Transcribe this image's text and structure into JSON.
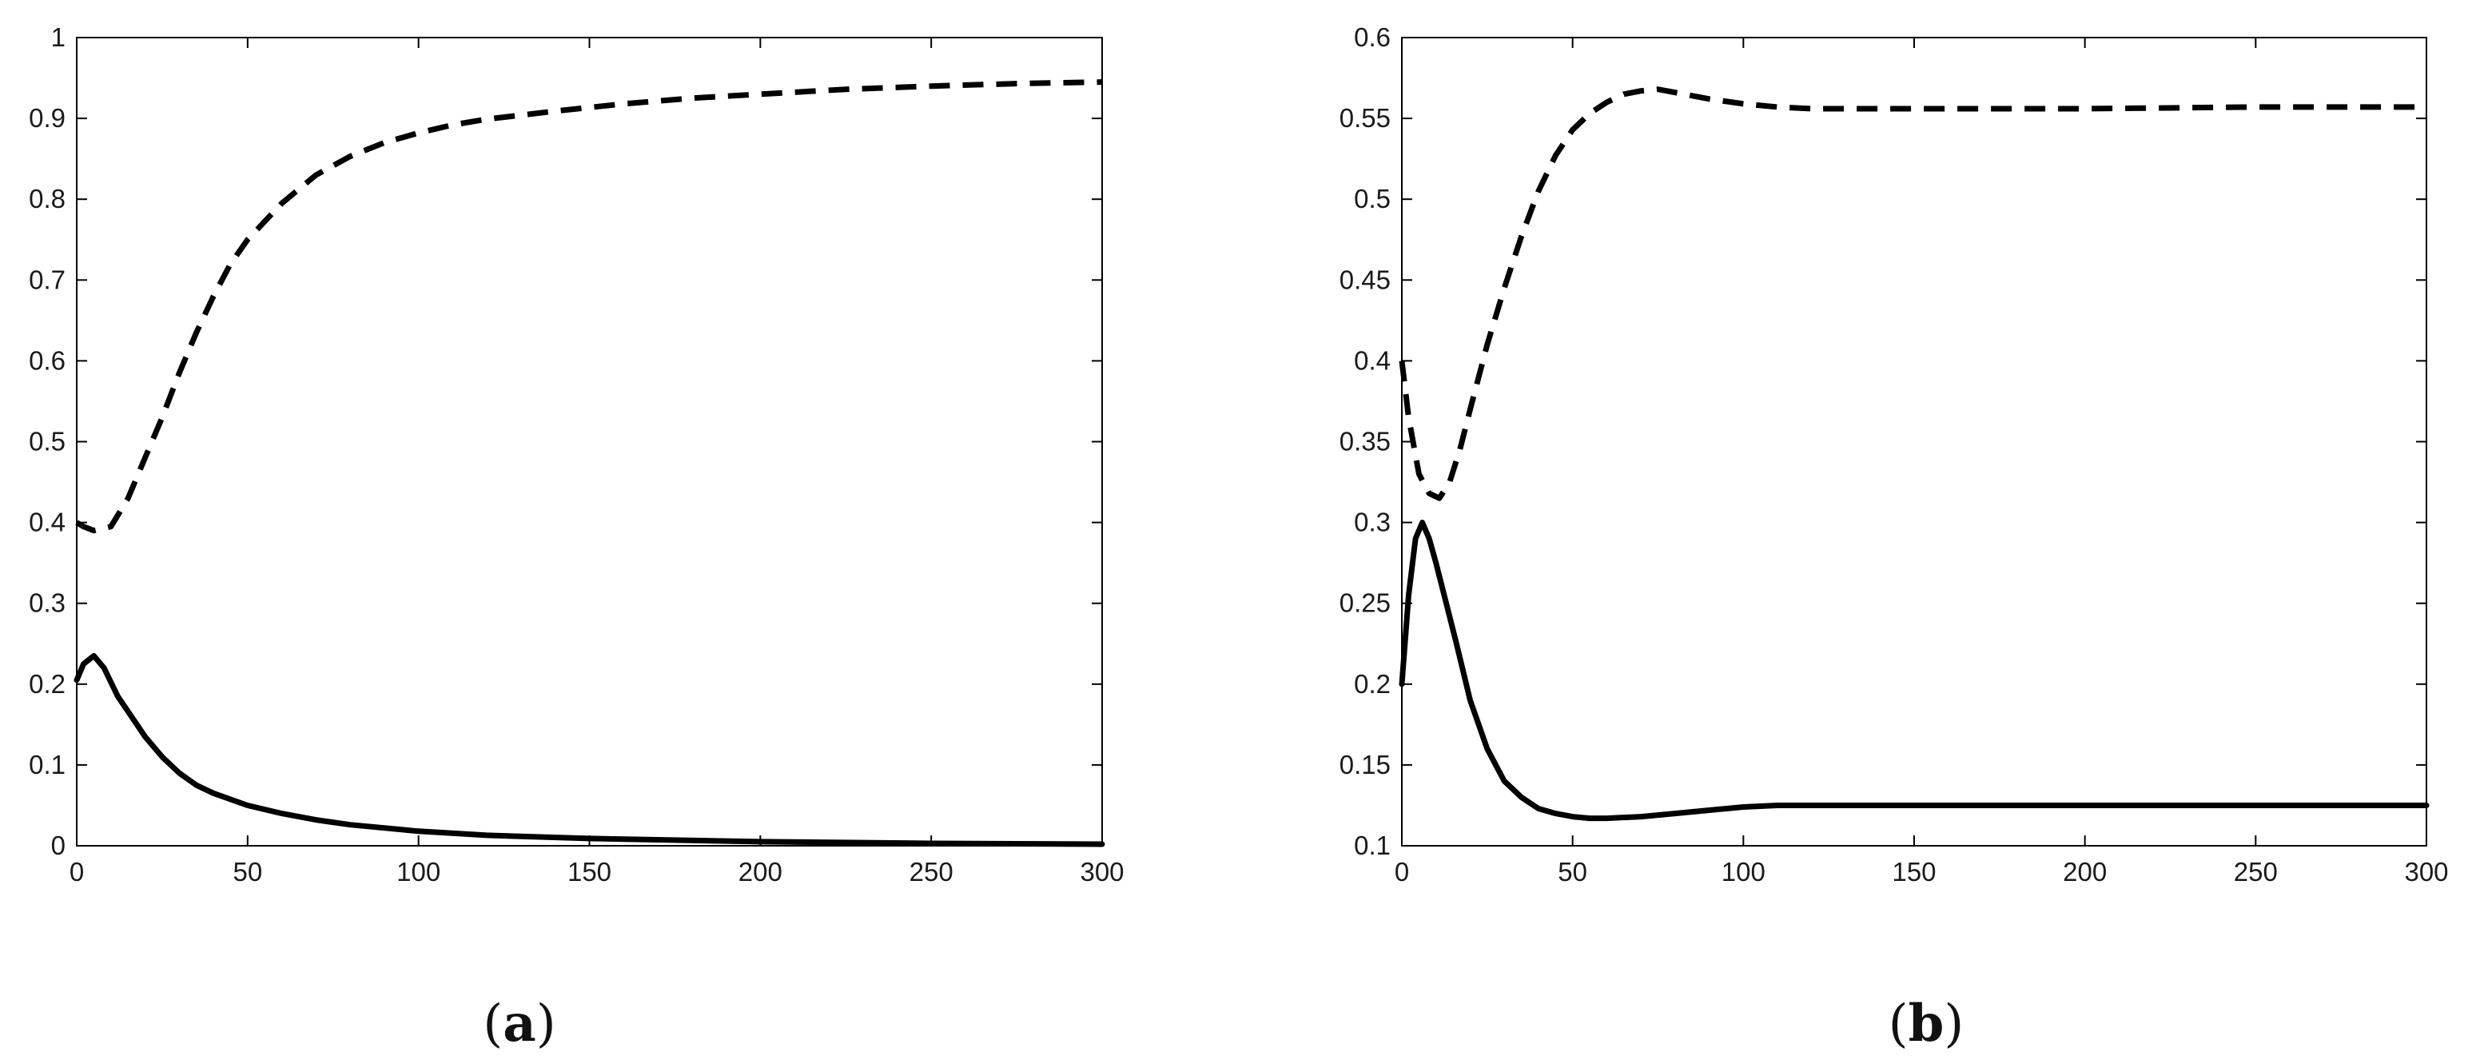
{
  "panel_labels": {
    "a_open": "(",
    "a_letter": "a",
    "a_close": ")",
    "b_open": "(",
    "b_letter": "b",
    "b_close": ")"
  },
  "chart_data": [
    {
      "type": "line",
      "panel": "a",
      "title": "",
      "xlabel": "",
      "ylabel": "",
      "xlim": [
        0,
        300
      ],
      "ylim": [
        0,
        1
      ],
      "xticks": [
        0,
        50,
        100,
        150,
        200,
        250,
        300
      ],
      "yticks": [
        0,
        0.1,
        0.2,
        0.3,
        0.4,
        0.5,
        0.6,
        0.7,
        0.8,
        0.9,
        1
      ],
      "xtick_labels": [
        "0",
        "50",
        "100",
        "150",
        "200",
        "250",
        "300"
      ],
      "ytick_labels": [
        "0",
        "0.1",
        "0.2",
        "0.3",
        "0.4",
        "0.5",
        "0.6",
        "0.7",
        "0.8",
        "0.9",
        "1"
      ],
      "grid": false,
      "legend": "none",
      "series": [
        {
          "style": "dashed",
          "color": "#000000",
          "x": [
            0,
            2,
            5,
            10,
            15,
            20,
            25,
            30,
            35,
            40,
            45,
            50,
            60,
            70,
            80,
            90,
            100,
            110,
            120,
            140,
            160,
            180,
            200,
            225,
            250,
            275,
            300
          ],
          "y": [
            0.4,
            0.395,
            0.39,
            0.395,
            0.43,
            0.48,
            0.53,
            0.585,
            0.635,
            0.68,
            0.72,
            0.75,
            0.795,
            0.83,
            0.853,
            0.87,
            0.882,
            0.892,
            0.899,
            0.909,
            0.918,
            0.925,
            0.93,
            0.936,
            0.94,
            0.943,
            0.945
          ]
        },
        {
          "style": "solid",
          "color": "#000000",
          "x": [
            0,
            2,
            5,
            8,
            12,
            16,
            20,
            25,
            30,
            35,
            40,
            50,
            60,
            70,
            80,
            100,
            120,
            150,
            200,
            250,
            300
          ],
          "y": [
            0.205,
            0.225,
            0.235,
            0.22,
            0.185,
            0.16,
            0.135,
            0.11,
            0.09,
            0.075,
            0.065,
            0.05,
            0.04,
            0.032,
            0.026,
            0.018,
            0.013,
            0.009,
            0.005,
            0.003,
            0.002
          ]
        }
      ]
    },
    {
      "type": "line",
      "panel": "b",
      "title": "",
      "xlabel": "",
      "ylabel": "",
      "xlim": [
        0,
        300
      ],
      "ylim": [
        0.1,
        0.6
      ],
      "xticks": [
        0,
        50,
        100,
        150,
        200,
        250,
        300
      ],
      "yticks": [
        0.1,
        0.15,
        0.2,
        0.25,
        0.3,
        0.35,
        0.4,
        0.45,
        0.5,
        0.55,
        0.6
      ],
      "xtick_labels": [
        "0",
        "50",
        "100",
        "150",
        "200",
        "250",
        "300"
      ],
      "ytick_labels": [
        "0.1",
        "0.15",
        "0.2",
        "0.25",
        "0.3",
        "0.35",
        "0.4",
        "0.45",
        "0.5",
        "0.55",
        "0.6"
      ],
      "grid": false,
      "legend": "none",
      "series": [
        {
          "style": "dashed",
          "color": "#000000",
          "x": [
            0,
            2,
            5,
            8,
            11,
            14,
            17,
            20,
            25,
            30,
            35,
            40,
            45,
            50,
            55,
            60,
            65,
            70,
            75,
            80,
            90,
            100,
            110,
            120,
            150,
            200,
            250,
            300
          ],
          "y": [
            0.4,
            0.365,
            0.33,
            0.318,
            0.315,
            0.325,
            0.345,
            0.37,
            0.41,
            0.445,
            0.477,
            0.505,
            0.527,
            0.543,
            0.553,
            0.56,
            0.565,
            0.567,
            0.568,
            0.566,
            0.562,
            0.559,
            0.557,
            0.556,
            0.556,
            0.556,
            0.557,
            0.557
          ]
        },
        {
          "style": "solid",
          "color": "#000000",
          "x": [
            0,
            2,
            4,
            6,
            8,
            10,
            13,
            16,
            20,
            25,
            30,
            35,
            40,
            45,
            50,
            55,
            60,
            70,
            80,
            90,
            100,
            110,
            120,
            150,
            200,
            250,
            300
          ],
          "y": [
            0.2,
            0.255,
            0.29,
            0.3,
            0.29,
            0.275,
            0.25,
            0.225,
            0.19,
            0.16,
            0.14,
            0.13,
            0.123,
            0.12,
            0.118,
            0.117,
            0.117,
            0.118,
            0.12,
            0.122,
            0.124,
            0.125,
            0.125,
            0.125,
            0.125,
            0.125,
            0.125
          ]
        }
      ]
    }
  ]
}
